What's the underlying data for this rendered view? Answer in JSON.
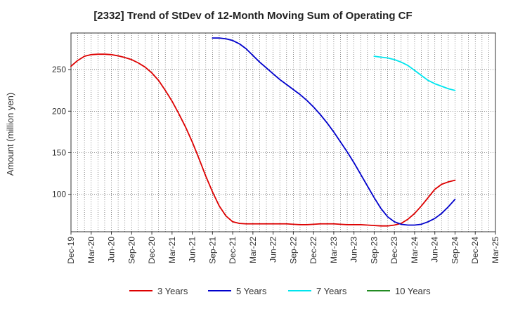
{
  "chart_data": {
    "type": "line",
    "title": "[2332]  Trend of StDev of 12-Month Moving Sum of Operating CF",
    "xlabel": "",
    "ylabel": "Amount (million yen)",
    "x_ticks": [
      "Dec-19",
      "Mar-20",
      "Jun-20",
      "Sep-20",
      "Dec-20",
      "Mar-21",
      "Jun-21",
      "Sep-21",
      "Dec-21",
      "Mar-22",
      "Jun-22",
      "Sep-22",
      "Dec-22",
      "Mar-23",
      "Jun-23",
      "Sep-23",
      "Dec-23",
      "Mar-24",
      "Jun-24",
      "Sep-24",
      "Dec-24",
      "Mar-25"
    ],
    "y_ticks": [
      100,
      150,
      200,
      250
    ],
    "ylim": [
      55,
      294
    ],
    "grid": true,
    "legend_position": "bottom",
    "series": [
      {
        "name": "3 Years",
        "color": "#dd0000",
        "points": [
          [
            "Dec-19",
            254
          ],
          [
            "Jan-20",
            261
          ],
          [
            "Feb-20",
            266
          ],
          [
            "Mar-20",
            268
          ],
          [
            "Apr-20",
            268.5
          ],
          [
            "May-20",
            268.5
          ],
          [
            "Jun-20",
            268
          ],
          [
            "Jul-20",
            266.5
          ],
          [
            "Aug-20",
            264.5
          ],
          [
            "Sep-20",
            262
          ],
          [
            "Oct-20",
            258
          ],
          [
            "Nov-20",
            253
          ],
          [
            "Dec-20",
            246
          ],
          [
            "Jan-21",
            237
          ],
          [
            "Feb-21",
            225
          ],
          [
            "Mar-21",
            212
          ],
          [
            "Apr-21",
            197
          ],
          [
            "May-21",
            181
          ],
          [
            "Jun-21",
            163
          ],
          [
            "Jul-21",
            143
          ],
          [
            "Aug-21",
            122
          ],
          [
            "Sep-21",
            103
          ],
          [
            "Oct-21",
            86
          ],
          [
            "Nov-21",
            74
          ],
          [
            "Dec-21",
            67
          ],
          [
            "Jan-22",
            65
          ],
          [
            "Feb-22",
            64.5
          ],
          [
            "Mar-22",
            64.5
          ],
          [
            "Apr-22",
            64.5
          ],
          [
            "May-22",
            64.5
          ],
          [
            "Jun-22",
            64.5
          ],
          [
            "Jul-22",
            64.5
          ],
          [
            "Aug-22",
            64.5
          ],
          [
            "Sep-22",
            64
          ],
          [
            "Oct-22",
            63.5
          ],
          [
            "Nov-22",
            63.5
          ],
          [
            "Dec-22",
            64
          ],
          [
            "Jan-23",
            64.5
          ],
          [
            "Feb-23",
            64.5
          ],
          [
            "Mar-23",
            64.5
          ],
          [
            "Apr-23",
            64
          ],
          [
            "May-23",
            63.5
          ],
          [
            "Jun-23",
            63.5
          ],
          [
            "Jul-23",
            63.5
          ],
          [
            "Aug-23",
            63
          ],
          [
            "Sep-23",
            62.5
          ],
          [
            "Oct-23",
            62
          ],
          [
            "Nov-23",
            62
          ],
          [
            "Dec-23",
            63
          ],
          [
            "Jan-24",
            65
          ],
          [
            "Feb-24",
            70
          ],
          [
            "Mar-24",
            77
          ],
          [
            "Apr-24",
            86
          ],
          [
            "May-24",
            96
          ],
          [
            "Jun-24",
            106
          ],
          [
            "Jul-24",
            112
          ],
          [
            "Aug-24",
            115
          ],
          [
            "Sep-24",
            117
          ]
        ]
      },
      {
        "name": "5 Years",
        "color": "#0000cc",
        "points": [
          [
            "Sep-21",
            288
          ],
          [
            "Oct-21",
            288
          ],
          [
            "Nov-21",
            287
          ],
          [
            "Dec-21",
            285
          ],
          [
            "Jan-22",
            281
          ],
          [
            "Feb-22",
            275
          ],
          [
            "Mar-22",
            267
          ],
          [
            "Apr-22",
            259
          ],
          [
            "May-22",
            252
          ],
          [
            "Jun-22",
            245
          ],
          [
            "Jul-22",
            238
          ],
          [
            "Aug-22",
            232
          ],
          [
            "Sep-22",
            226
          ],
          [
            "Oct-22",
            220
          ],
          [
            "Nov-22",
            213
          ],
          [
            "Dec-22",
            205
          ],
          [
            "Jan-23",
            196
          ],
          [
            "Feb-23",
            186
          ],
          [
            "Mar-23",
            175
          ],
          [
            "Apr-23",
            163
          ],
          [
            "May-23",
            151
          ],
          [
            "Jun-23",
            138
          ],
          [
            "Jul-23",
            124
          ],
          [
            "Aug-23",
            110
          ],
          [
            "Sep-23",
            96
          ],
          [
            "Oct-23",
            83
          ],
          [
            "Nov-23",
            73
          ],
          [
            "Dec-23",
            67
          ],
          [
            "Jan-24",
            64
          ],
          [
            "Feb-24",
            63
          ],
          [
            "Mar-24",
            63
          ],
          [
            "Apr-24",
            64
          ],
          [
            "May-24",
            67
          ],
          [
            "Jun-24",
            71
          ],
          [
            "Jul-24",
            77
          ],
          [
            "Aug-24",
            85
          ],
          [
            "Sep-24",
            94
          ]
        ]
      },
      {
        "name": "7 Years",
        "color": "#00e5ee",
        "points": [
          [
            "Sep-23",
            266
          ],
          [
            "Oct-23",
            265
          ],
          [
            "Nov-23",
            264
          ],
          [
            "Dec-23",
            262
          ],
          [
            "Jan-24",
            259
          ],
          [
            "Feb-24",
            255
          ],
          [
            "Mar-24",
            249
          ],
          [
            "Apr-24",
            243
          ],
          [
            "May-24",
            237
          ],
          [
            "Jun-24",
            233
          ],
          [
            "Jul-24",
            230
          ],
          [
            "Aug-24",
            227
          ],
          [
            "Sep-24",
            225
          ]
        ]
      },
      {
        "name": "10 Years",
        "color": "#228b22",
        "points": []
      }
    ]
  }
}
